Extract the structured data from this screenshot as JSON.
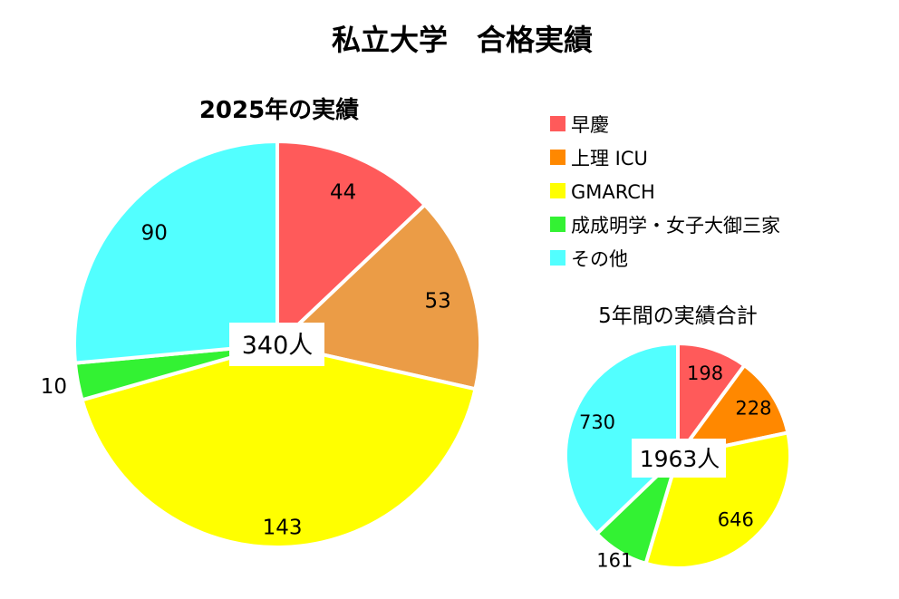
{
  "title": "私立大学　合格実績",
  "chart_data": [
    {
      "type": "pie",
      "title": "2025年の実績",
      "center_label": "340人",
      "categories": [
        "早慶",
        "上理 ICU",
        "GMARCH",
        "成成明学・女子大御三家",
        "その他"
      ],
      "values": [
        44,
        53,
        143,
        10,
        90
      ],
      "colors": [
        "#ff5a5a",
        "#eb9c46",
        "#ffff00",
        "#33f233",
        "#52ffff"
      ]
    },
    {
      "type": "pie",
      "title": "5年間の実績合計",
      "center_label": "1963人",
      "categories": [
        "早慶",
        "上理 ICU",
        "GMARCH",
        "成成明学・女子大御三家",
        "その他"
      ],
      "values": [
        198,
        228,
        646,
        161,
        730
      ],
      "colors": [
        "#ff5a5a",
        "#ff8800",
        "#ffff00",
        "#33f233",
        "#52ffff"
      ]
    }
  ],
  "legend": {
    "items": [
      {
        "label": "早慶",
        "color": "#ff5a5a"
      },
      {
        "label": "上理 ICU",
        "color": "#ff8800"
      },
      {
        "label": "GMARCH",
        "color": "#ffff00"
      },
      {
        "label": "成成明学・女子大御三家",
        "color": "#33f233"
      },
      {
        "label": "その他",
        "color": "#52ffff"
      }
    ]
  }
}
